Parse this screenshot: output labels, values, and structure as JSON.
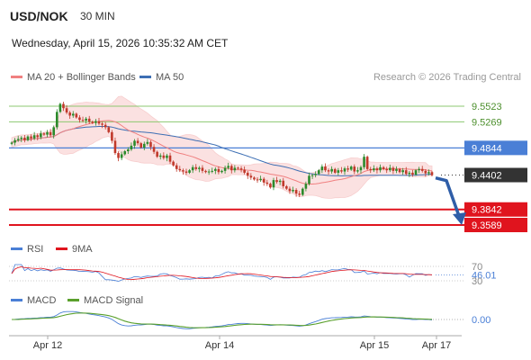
{
  "header": {
    "symbol": "USD/NOK",
    "timeframe": "30 MIN",
    "datetime": "Wednesday, April 15, 2026 10:35:32 AM CET",
    "credit": "Research © 2026 Trading Central"
  },
  "colors": {
    "ma20": "#f08080",
    "bollinger_fill": "#fbdcdc",
    "ma50": "#3d6fb4",
    "support": "#e0141e",
    "resistance": "#8cc870",
    "pivot": "#4a7fd6",
    "current": "#333333",
    "candle_up": "#2b8a2b",
    "candle_down": "#c0392b",
    "rsi": "#4a7fd6",
    "rsi_ma": "#e0141e",
    "macd": "#4a7fd6",
    "macd_signal": "#5aa02c",
    "arrow": "#2f5ea8"
  },
  "chart_data": [
    {
      "type": "candlestick",
      "legend": [
        {
          "label": "MA 20 + Bollinger Bands",
          "color": "#f08080"
        },
        {
          "label": "MA 50",
          "color": "#3d6fb4"
        }
      ],
      "ylim": [
        9.3589,
        9.5523
      ],
      "levels": [
        {
          "value": 9.5523,
          "label": "9.5523",
          "kind": "resistance"
        },
        {
          "value": 9.5269,
          "label": "9.5269",
          "kind": "resistance"
        },
        {
          "value": 9.4844,
          "label": "9.4844",
          "kind": "pivot"
        },
        {
          "value": 9.4402,
          "label": "9.4402",
          "kind": "current"
        },
        {
          "value": 9.3842,
          "label": "9.3842",
          "kind": "support"
        },
        {
          "value": 9.3589,
          "label": "9.3589",
          "kind": "support"
        }
      ],
      "close": [
        9.493,
        9.497,
        9.499,
        9.501,
        9.497,
        9.503,
        9.5,
        9.505,
        9.502,
        9.508,
        9.506,
        9.51,
        9.505,
        9.518,
        9.543,
        9.556,
        9.549,
        9.542,
        9.537,
        9.54,
        9.534,
        9.53,
        9.529,
        9.532,
        9.527,
        9.525,
        9.528,
        9.524,
        9.522,
        9.518,
        9.51,
        9.496,
        9.476,
        9.468,
        9.474,
        9.479,
        9.482,
        9.488,
        9.496,
        9.492,
        9.485,
        9.491,
        9.494,
        9.486,
        9.478,
        9.47,
        9.472,
        9.468,
        9.472,
        9.462,
        9.456,
        9.45,
        9.448,
        9.446,
        9.444,
        9.448,
        9.453,
        9.45,
        9.452,
        9.447,
        9.445,
        9.446,
        9.447,
        9.45,
        9.445,
        9.447,
        9.452,
        9.455,
        9.448,
        9.452,
        9.451,
        9.449,
        9.444,
        9.439,
        9.436,
        9.433,
        9.432,
        9.434,
        9.428,
        9.426,
        9.42,
        9.432,
        9.429,
        9.431,
        9.422,
        9.418,
        9.414,
        9.416,
        9.41,
        9.408,
        9.418,
        9.426,
        9.439,
        9.44,
        9.442,
        9.448,
        9.454,
        9.448,
        9.446,
        9.45,
        9.444,
        9.448,
        9.446,
        9.451,
        9.449,
        9.454,
        9.446,
        9.448,
        9.453,
        9.47,
        9.45,
        9.448,
        9.451,
        9.448,
        9.453,
        9.45,
        9.448,
        9.452,
        9.447,
        9.45,
        9.445,
        9.448,
        9.442,
        9.444,
        9.441,
        9.448,
        9.45,
        9.447,
        9.443,
        9.445,
        9.44
      ],
      "dates": [
        "Apr 12",
        "Apr 14",
        "Apr 15",
        "Apr 17"
      ]
    },
    {
      "type": "line",
      "legend": [
        {
          "label": "RSI",
          "color": "#4a7fd6"
        },
        {
          "label": "9MA",
          "color": "#e0141e"
        }
      ],
      "ylim": [
        30,
        70
      ],
      "levels": [
        {
          "value": 70,
          "label": "70"
        },
        {
          "value": 46.01,
          "label": "46.01"
        },
        {
          "value": 30,
          "label": "30"
        }
      ]
    },
    {
      "type": "line",
      "legend": [
        {
          "label": "MACD",
          "color": "#4a7fd6"
        },
        {
          "label": "MACD Signal",
          "color": "#5aa02c"
        }
      ],
      "levels": [
        {
          "value": 0,
          "label": "0.00"
        }
      ]
    }
  ],
  "xaxis": {
    "ticks": [
      "Apr 12",
      "Apr 14",
      "Apr 15",
      "Apr 17"
    ]
  }
}
